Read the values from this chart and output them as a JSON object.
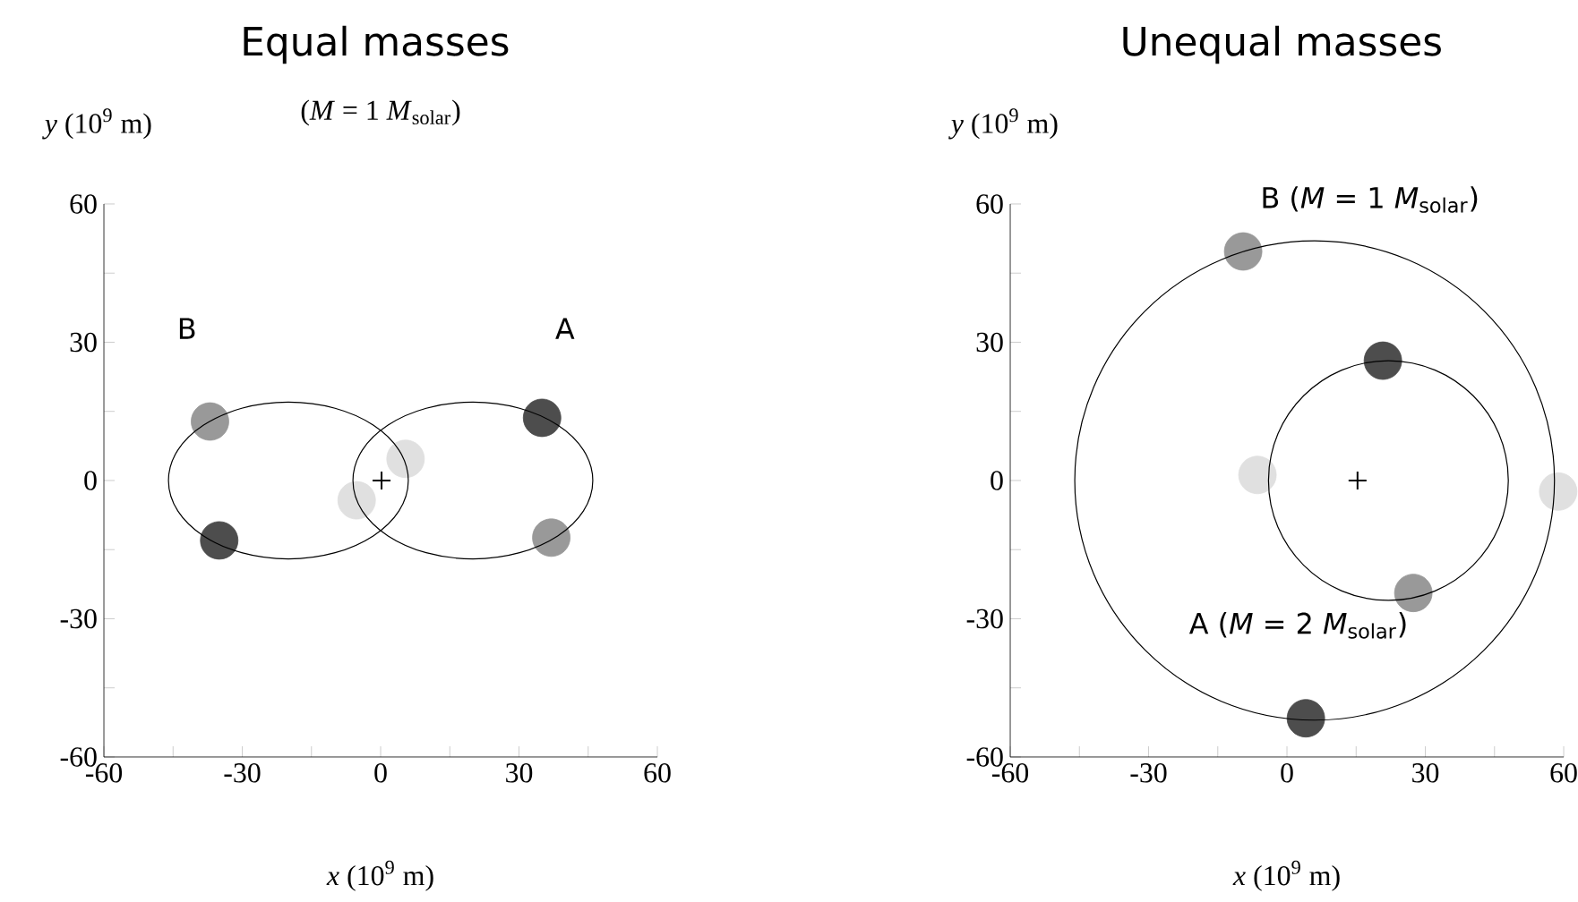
{
  "chart_data": [
    {
      "type": "scatter",
      "title": "Equal masses",
      "subtitle": "(*M* = 1 *M*$_{solar}$)",
      "xlabel": "*x* (10$^{9}$ m)",
      "ylabel": "*y* (10$^{9}$ m)",
      "xlim": [
        -60,
        60
      ],
      "ylim": [
        -60,
        60
      ],
      "xticks": [
        -60,
        {
          "value": -45,
          "label": null
        },
        -30,
        {
          "value": -15,
          "label": null
        },
        0,
        {
          "value": 15,
          "label": null
        },
        30,
        {
          "value": 45,
          "label": null
        },
        60
      ],
      "yticks": [
        -60,
        {
          "value": -45,
          "label": null
        },
        -30,
        {
          "value": -15,
          "label": null
        },
        0,
        {
          "value": 15,
          "label": null
        },
        30,
        {
          "value": 45,
          "label": null
        },
        60
      ],
      "annotations": [
        "B",
        "A"
      ],
      "series": [
        {
          "color": "#4d4d4d",
          "marker": "circle",
          "x": [
            -35,
            35
          ],
          "values": [
            -13,
            13.6
          ]
        },
        {
          "color": "#999999",
          "marker": "circle",
          "x": [
            -37,
            37
          ],
          "values": [
            12.8,
            -12.4
          ]
        },
        {
          "color": "#e0e0e0",
          "marker": "circle",
          "x": [
            -5.2,
            5.4
          ],
          "values": [
            -4.3,
            4.7
          ]
        },
        {
          "color": "#000000",
          "marker": "cross",
          "x": [
            0.2
          ],
          "values": [
            0
          ]
        }
      ]
    },
    {
      "type": "scatter",
      "title": "Unequal masses",
      "xlabel": "*x* (10$^{9}$ m)",
      "ylabel": "*y* (10$^{9}$ m)",
      "xlim": [
        -60,
        60
      ],
      "ylim": [
        -60,
        60
      ],
      "xticks": [
        -60,
        {
          "value": -45,
          "label": null
        },
        -30,
        {
          "value": -15,
          "label": null
        },
        0,
        {
          "value": 15,
          "label": null
        },
        30,
        {
          "value": 45,
          "label": null
        },
        60
      ],
      "yticks": [
        -60,
        {
          "value": -45,
          "label": null
        },
        -30,
        {
          "value": -15,
          "label": null
        },
        0,
        {
          "value": 15,
          "label": null
        },
        30,
        {
          "value": 45,
          "label": null
        },
        60
      ],
      "annotations": [
        "B (*M* = 1 *M*$_{solar}$)",
        "A (*M* = 2 *M*$_{solar}$)"
      ],
      "series": [
        {
          "color": "#4d4d4d",
          "marker": "circle",
          "x": [
            4.1,
            20.8
          ],
          "values": [
            -51.6,
            26
          ]
        },
        {
          "color": "#999999",
          "marker": "circle",
          "x": [
            -9.5,
            27.4
          ],
          "values": [
            49.7,
            -24.4
          ]
        },
        {
          "color": "#e0e0e0",
          "marker": "circle",
          "x": [
            58.8,
            -6.4
          ],
          "values": [
            -2.4,
            1.2
          ]
        },
        {
          "color": "#000000",
          "marker": "cross",
          "x": [
            15.3
          ],
          "values": [
            0
          ]
        }
      ]
    }
  ]
}
